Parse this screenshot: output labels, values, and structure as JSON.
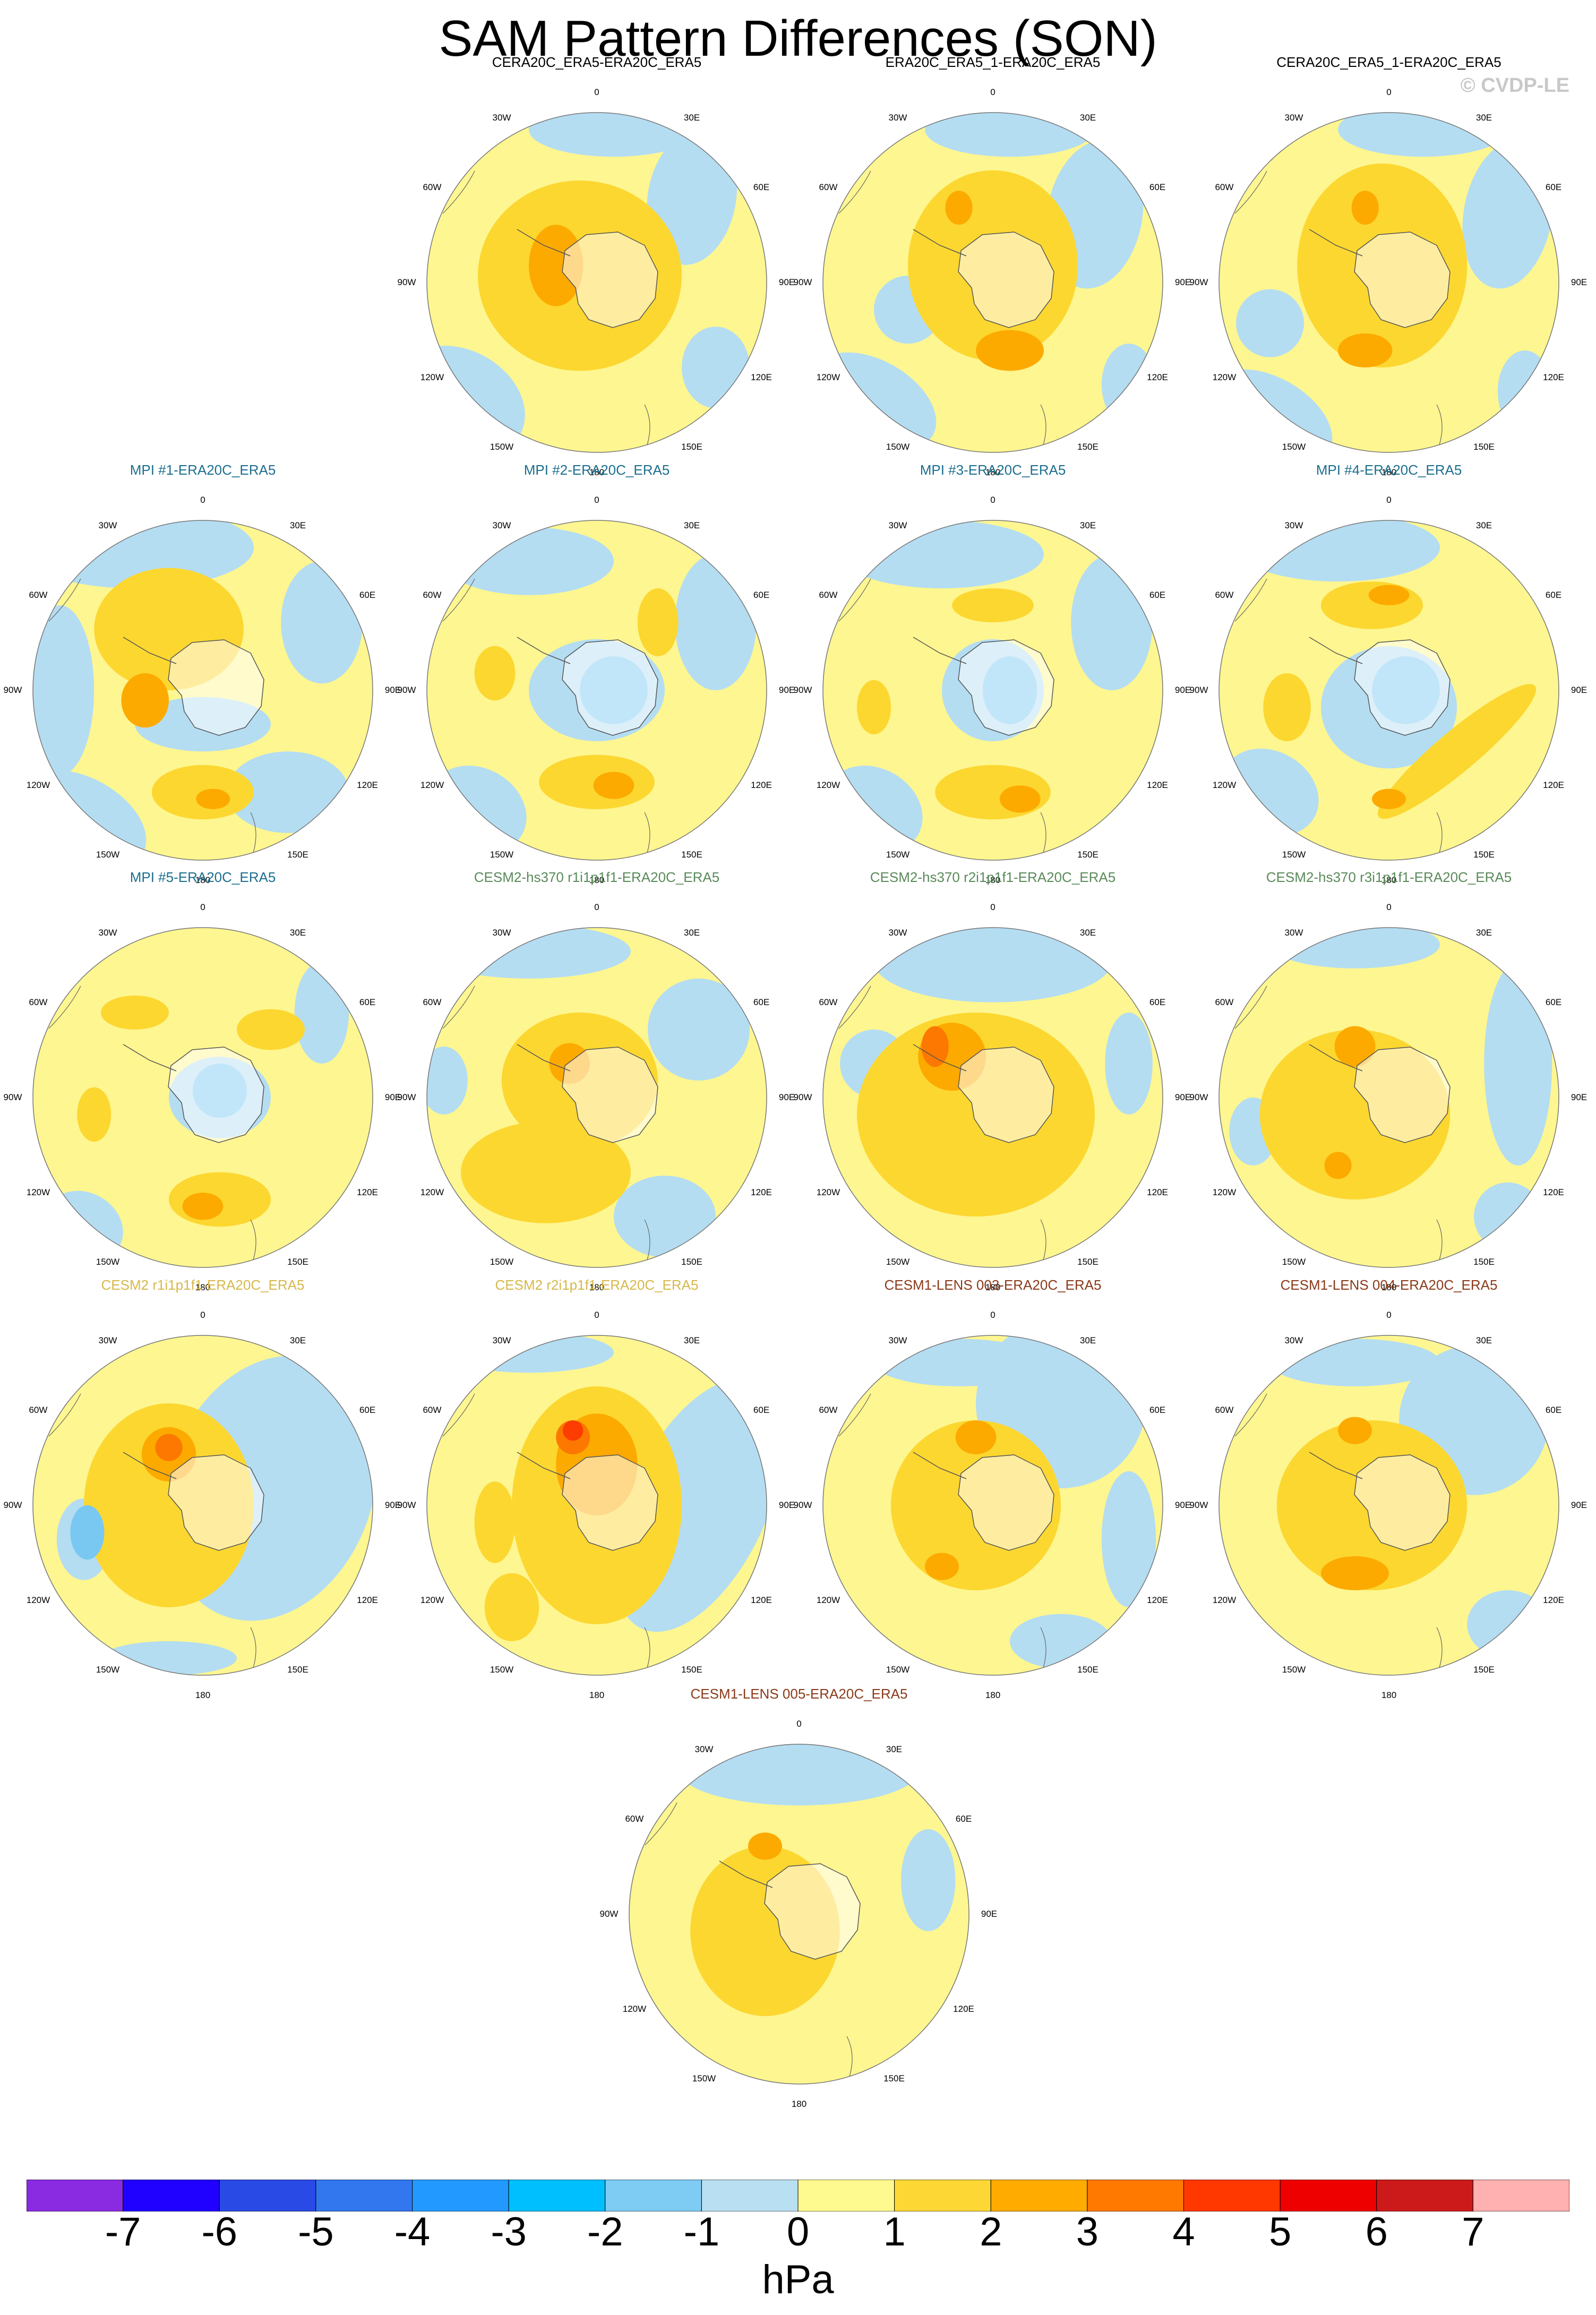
{
  "title": "SAM Pattern Differences (SON)",
  "credit": "© CVDP-LE",
  "colors": {
    "ltblue": "#b4ddf2",
    "blue1": "#78c8f2",
    "blue2": "#00baff",
    "ltyellow": "#fef690",
    "yellow": "#fcd730",
    "orange": "#fcaa00",
    "dkorange": "#fc7800",
    "red": "#fc3c00",
    "land": "#ffffff"
  },
  "lon_labels": [
    "0",
    "30E",
    "60E",
    "90E",
    "120E",
    "150E",
    "180",
    "150W",
    "120W",
    "90W",
    "60W",
    "30W"
  ],
  "chart_data": {
    "type": "contour-map",
    "projection": "polar stereographic, Southern Hemisphere",
    "variable": "SLP difference",
    "units": "hPa",
    "panels": [
      {
        "title": "CERA20C_ERA5-ERA20C_ERA5",
        "title_color": "#000000",
        "ocean": "ltyellow",
        "blobs": [
          [
            "ltblue",
            0.78,
            0.25,
            0.13,
            0.2,
            10
          ],
          [
            "ltblue",
            0.1,
            0.85,
            0.2,
            0.15,
            30
          ],
          [
            "ltblue",
            0.55,
            0.05,
            0.25,
            0.08,
            0
          ],
          [
            "ltblue",
            0.85,
            0.75,
            0.1,
            0.12,
            0
          ],
          [
            "yellow",
            0.45,
            0.48,
            0.3,
            0.28,
            0
          ],
          [
            "orange",
            0.38,
            0.45,
            0.08,
            0.12,
            0
          ]
        ]
      },
      {
        "title": "ERA20C_ERA5_1-ERA20C_ERA5",
        "title_color": "#000000",
        "ocean": "ltyellow",
        "blobs": [
          [
            "ltblue",
            0.8,
            0.3,
            0.14,
            0.22,
            10
          ],
          [
            "ltblue",
            0.25,
            0.58,
            0.1,
            0.1,
            0
          ],
          [
            "ltblue",
            0.15,
            0.85,
            0.2,
            0.12,
            30
          ],
          [
            "ltblue",
            0.55,
            0.05,
            0.25,
            0.08,
            0
          ],
          [
            "ltblue",
            0.9,
            0.8,
            0.08,
            0.12,
            0
          ],
          [
            "yellow",
            0.5,
            0.45,
            0.25,
            0.28,
            0
          ],
          [
            "orange",
            0.55,
            0.7,
            0.1,
            0.06,
            0
          ],
          [
            "orange",
            0.4,
            0.28,
            0.04,
            0.05,
            0
          ]
        ]
      },
      {
        "title": "CERA20C_ERA5_1-ERA20C_ERA5",
        "title_color": "#000000",
        "ocean": "ltyellow",
        "blobs": [
          [
            "ltblue",
            0.85,
            0.3,
            0.13,
            0.22,
            10
          ],
          [
            "ltblue",
            0.15,
            0.62,
            0.1,
            0.1,
            0
          ],
          [
            "ltblue",
            0.15,
            0.9,
            0.2,
            0.12,
            30
          ],
          [
            "ltblue",
            0.6,
            0.05,
            0.25,
            0.08,
            0
          ],
          [
            "ltblue",
            0.9,
            0.82,
            0.08,
            0.12,
            0
          ],
          [
            "yellow",
            0.48,
            0.45,
            0.25,
            0.3,
            0
          ],
          [
            "orange",
            0.43,
            0.28,
            0.04,
            0.05,
            0
          ],
          [
            "orange",
            0.43,
            0.7,
            0.08,
            0.05,
            0
          ]
        ]
      },
      {
        "title": "MPI #1-ERA20C_ERA5",
        "title_color": "#1b6f8f",
        "ocean": "ltyellow",
        "blobs": [
          [
            "ltblue",
            0.3,
            0.08,
            0.35,
            0.12,
            0
          ],
          [
            "ltblue",
            0.85,
            0.3,
            0.12,
            0.18,
            0
          ],
          [
            "ltblue",
            0.08,
            0.5,
            0.1,
            0.25,
            0
          ],
          [
            "ltblue",
            0.15,
            0.88,
            0.2,
            0.12,
            30
          ],
          [
            "ltblue",
            0.75,
            0.8,
            0.18,
            0.12,
            0
          ],
          [
            "ltblue",
            0.5,
            0.6,
            0.2,
            0.08,
            0
          ],
          [
            "yellow",
            0.4,
            0.32,
            0.22,
            0.18,
            0
          ],
          [
            "yellow",
            0.5,
            0.8,
            0.15,
            0.08,
            0
          ],
          [
            "orange",
            0.33,
            0.53,
            0.07,
            0.08,
            0
          ],
          [
            "orange",
            0.53,
            0.82,
            0.05,
            0.03,
            0
          ]
        ]
      },
      {
        "title": "MPI #2-ERA20C_ERA5",
        "title_color": "#1b6f8f",
        "ocean": "ltyellow",
        "blobs": [
          [
            "ltblue",
            0.3,
            0.12,
            0.25,
            0.1,
            0
          ],
          [
            "ltblue",
            0.5,
            0.5,
            0.2,
            0.15,
            0
          ],
          [
            "ltblue",
            0.85,
            0.3,
            0.12,
            0.2,
            0
          ],
          [
            "ltblue",
            0.15,
            0.85,
            0.15,
            0.12,
            30
          ],
          [
            "yellow",
            0.2,
            0.45,
            0.06,
            0.08,
            0
          ],
          [
            "yellow",
            0.68,
            0.3,
            0.06,
            0.1,
            0
          ],
          [
            "yellow",
            0.5,
            0.77,
            0.17,
            0.08,
            0
          ],
          [
            "blue1",
            0.55,
            0.5,
            0.1,
            0.1,
            0
          ],
          [
            "orange",
            0.55,
            0.78,
            0.06,
            0.04,
            0
          ]
        ]
      },
      {
        "title": "MPI #3-ERA20C_ERA5",
        "title_color": "#1b6f8f",
        "ocean": "ltyellow",
        "blobs": [
          [
            "ltblue",
            0.35,
            0.1,
            0.3,
            0.1,
            0
          ],
          [
            "ltblue",
            0.5,
            0.5,
            0.15,
            0.15,
            0
          ],
          [
            "ltblue",
            0.85,
            0.3,
            0.12,
            0.2,
            0
          ],
          [
            "ltblue",
            0.15,
            0.85,
            0.15,
            0.12,
            30
          ],
          [
            "yellow",
            0.15,
            0.55,
            0.05,
            0.08,
            0
          ],
          [
            "yellow",
            0.5,
            0.25,
            0.12,
            0.05,
            0
          ],
          [
            "yellow",
            0.5,
            0.8,
            0.17,
            0.08,
            0
          ],
          [
            "blue1",
            0.55,
            0.5,
            0.08,
            0.1,
            0
          ],
          [
            "orange",
            0.58,
            0.82,
            0.06,
            0.04,
            0
          ]
        ]
      },
      {
        "title": "MPI #4-ERA20C_ERA5",
        "title_color": "#1b6f8f",
        "ocean": "ltyellow",
        "blobs": [
          [
            "ltblue",
            0.5,
            0.55,
            0.2,
            0.18,
            0
          ],
          [
            "ltblue",
            0.35,
            0.08,
            0.3,
            0.1,
            0
          ],
          [
            "ltblue",
            0.15,
            0.8,
            0.15,
            0.12,
            30
          ],
          [
            "yellow",
            0.45,
            0.25,
            0.15,
            0.07,
            0
          ],
          [
            "yellow",
            0.2,
            0.55,
            0.07,
            0.1,
            0
          ],
          [
            "yellow",
            0.7,
            0.68,
            0.3,
            0.06,
            -40
          ],
          [
            "blue1",
            0.55,
            0.5,
            0.1,
            0.1,
            0
          ],
          [
            "orange",
            0.5,
            0.22,
            0.06,
            0.03,
            0
          ],
          [
            "orange",
            0.5,
            0.82,
            0.05,
            0.03,
            0
          ]
        ]
      },
      {
        "title": "MPI #5-ERA20C_ERA5",
        "title_color": "#1b6f8f",
        "ocean": "ltyellow",
        "blobs": [
          [
            "ltblue",
            0.55,
            0.5,
            0.15,
            0.12,
            0
          ],
          [
            "ltblue",
            0.15,
            0.88,
            0.12,
            0.1,
            30
          ],
          [
            "ltblue",
            0.85,
            0.25,
            0.08,
            0.15,
            0
          ],
          [
            "yellow",
            0.3,
            0.25,
            0.1,
            0.05,
            0
          ],
          [
            "yellow",
            0.7,
            0.3,
            0.1,
            0.06,
            0
          ],
          [
            "yellow",
            0.18,
            0.55,
            0.05,
            0.08,
            0
          ],
          [
            "yellow",
            0.55,
            0.8,
            0.15,
            0.08,
            0
          ],
          [
            "blue1",
            0.55,
            0.48,
            0.08,
            0.08,
            0
          ],
          [
            "orange",
            0.5,
            0.82,
            0.06,
            0.04,
            0
          ]
        ]
      },
      {
        "title": "CESM2-hs370 r1i1p1f1-ERA20C_ERA5",
        "title_color": "#5a8a5a",
        "ocean": "ltyellow",
        "blobs": [
          [
            "ltblue",
            0.8,
            0.3,
            0.15,
            0.15,
            0
          ],
          [
            "ltblue",
            0.3,
            0.07,
            0.3,
            0.08,
            0
          ],
          [
            "ltblue",
            0.05,
            0.45,
            0.07,
            0.1,
            0
          ],
          [
            "ltblue",
            0.7,
            0.85,
            0.15,
            0.12,
            0
          ],
          [
            "yellow",
            0.45,
            0.45,
            0.23,
            0.2,
            0
          ],
          [
            "yellow",
            0.35,
            0.72,
            0.25,
            0.15,
            0
          ],
          [
            "orange",
            0.42,
            0.4,
            0.06,
            0.06,
            0
          ]
        ]
      },
      {
        "title": "CESM2-hs370 r2i1p1f1-ERA20C_ERA5",
        "title_color": "#5a8a5a",
        "ocean": "ltyellow",
        "blobs": [
          [
            "ltblue",
            0.5,
            0.1,
            0.35,
            0.12,
            0
          ],
          [
            "ltblue",
            0.9,
            0.4,
            0.07,
            0.15,
            0
          ],
          [
            "ltblue",
            0.15,
            0.4,
            0.1,
            0.1,
            0
          ],
          [
            "yellow",
            0.45,
            0.55,
            0.35,
            0.3,
            0
          ],
          [
            "orange",
            0.38,
            0.38,
            0.1,
            0.1,
            0
          ],
          [
            "dkorange",
            0.33,
            0.35,
            0.04,
            0.06,
            0
          ]
        ]
      },
      {
        "title": "CESM2-hs370 r3i1p1f1-ERA20C_ERA5",
        "title_color": "#5a8a5a",
        "ocean": "ltyellow",
        "blobs": [
          [
            "ltblue",
            0.88,
            0.4,
            0.1,
            0.3,
            0
          ],
          [
            "ltblue",
            0.4,
            0.05,
            0.25,
            0.07,
            0
          ],
          [
            "ltblue",
            0.1,
            0.6,
            0.07,
            0.1,
            0
          ],
          [
            "ltblue",
            0.85,
            0.85,
            0.1,
            0.1,
            0
          ],
          [
            "yellow",
            0.4,
            0.55,
            0.28,
            0.25,
            0
          ],
          [
            "orange",
            0.4,
            0.35,
            0.06,
            0.06,
            0
          ],
          [
            "orange",
            0.35,
            0.7,
            0.04,
            0.04,
            0
          ]
        ]
      },
      {
        "title": "CESM2 r1i1p1f1-ERA20C_ERA5",
        "title_color": "#d6b84a",
        "ocean": "ltyellow",
        "blobs": [
          [
            "ltblue",
            0.7,
            0.45,
            0.3,
            0.4,
            20
          ],
          [
            "ltblue",
            0.4,
            0.95,
            0.2,
            0.05,
            0
          ],
          [
            "ltblue",
            0.15,
            0.6,
            0.08,
            0.12,
            0
          ],
          [
            "yellow",
            0.4,
            0.5,
            0.25,
            0.3,
            0
          ],
          [
            "orange",
            0.4,
            0.35,
            0.08,
            0.08,
            0
          ],
          [
            "dkorange",
            0.4,
            0.33,
            0.04,
            0.04,
            0
          ],
          [
            "blue1",
            0.16,
            0.58,
            0.05,
            0.08,
            0
          ]
        ]
      },
      {
        "title": "CESM2 r2i1p1f1-ERA20C_ERA5",
        "title_color": "#d6b84a",
        "ocean": "ltyellow",
        "blobs": [
          [
            "ltblue",
            0.8,
            0.5,
            0.2,
            0.4,
            25
          ],
          [
            "ltblue",
            0.3,
            0.05,
            0.25,
            0.06,
            0
          ],
          [
            "yellow",
            0.5,
            0.5,
            0.25,
            0.35,
            0
          ],
          [
            "yellow",
            0.2,
            0.55,
            0.06,
            0.12,
            0
          ],
          [
            "yellow",
            0.25,
            0.8,
            0.08,
            0.1,
            0
          ],
          [
            "orange",
            0.5,
            0.38,
            0.12,
            0.15,
            0
          ],
          [
            "dkorange",
            0.43,
            0.3,
            0.05,
            0.05,
            0
          ],
          [
            "red",
            0.43,
            0.28,
            0.03,
            0.03,
            0
          ]
        ]
      },
      {
        "title": "CESM1-LENS 003-ERA20C_ERA5",
        "title_color": "#8b3a1a",
        "ocean": "ltyellow",
        "blobs": [
          [
            "ltblue",
            0.7,
            0.2,
            0.25,
            0.25,
            0
          ],
          [
            "ltblue",
            0.4,
            0.08,
            0.25,
            0.07,
            0
          ],
          [
            "ltblue",
            0.9,
            0.6,
            0.08,
            0.2,
            0
          ],
          [
            "ltblue",
            0.7,
            0.9,
            0.15,
            0.08,
            0
          ],
          [
            "yellow",
            0.45,
            0.5,
            0.25,
            0.25,
            0
          ],
          [
            "orange",
            0.45,
            0.3,
            0.06,
            0.05,
            0
          ],
          [
            "orange",
            0.35,
            0.68,
            0.05,
            0.04,
            0
          ]
        ]
      },
      {
        "title": "CESM1-LENS 004-ERA20C_ERA5",
        "title_color": "#8b3a1a",
        "ocean": "ltyellow",
        "blobs": [
          [
            "ltblue",
            0.75,
            0.25,
            0.22,
            0.22,
            0
          ],
          [
            "ltblue",
            0.4,
            0.08,
            0.25,
            0.07,
            0
          ],
          [
            "ltblue",
            0.85,
            0.85,
            0.12,
            0.1,
            0
          ],
          [
            "yellow",
            0.45,
            0.5,
            0.28,
            0.25,
            0
          ],
          [
            "orange",
            0.4,
            0.28,
            0.05,
            0.04,
            0
          ],
          [
            "orange",
            0.4,
            0.7,
            0.1,
            0.05,
            0
          ]
        ]
      },
      {
        "title": "CESM1-LENS 005-ERA20C_ERA5",
        "title_color": "#8b3a1a",
        "ocean": "ltyellow",
        "blobs": [
          [
            "ltblue",
            0.5,
            0.08,
            0.35,
            0.1,
            0
          ],
          [
            "ltblue",
            0.88,
            0.4,
            0.08,
            0.15,
            0
          ],
          [
            "yellow",
            0.4,
            0.55,
            0.22,
            0.25,
            0
          ],
          [
            "orange",
            0.4,
            0.3,
            0.05,
            0.04,
            0
          ]
        ]
      }
    ],
    "colorbar": {
      "labels": [
        "-7",
        "-6",
        "-5",
        "-4",
        "-3",
        "-2",
        "-1",
        "0",
        "1",
        "2",
        "3",
        "4",
        "5",
        "6",
        "7"
      ],
      "colors": [
        "#8a2be2",
        "#2000ff",
        "#2a4ae6",
        "#3377ee",
        "#2299ff",
        "#00bfff",
        "#7ecbf3",
        "#b8dff2",
        "#fffa90",
        "#fdd835",
        "#ffab00",
        "#ff7800",
        "#ff3800",
        "#ee0000",
        "#cc1a1a",
        "#ffb0b0"
      ],
      "units": "hPa"
    }
  }
}
